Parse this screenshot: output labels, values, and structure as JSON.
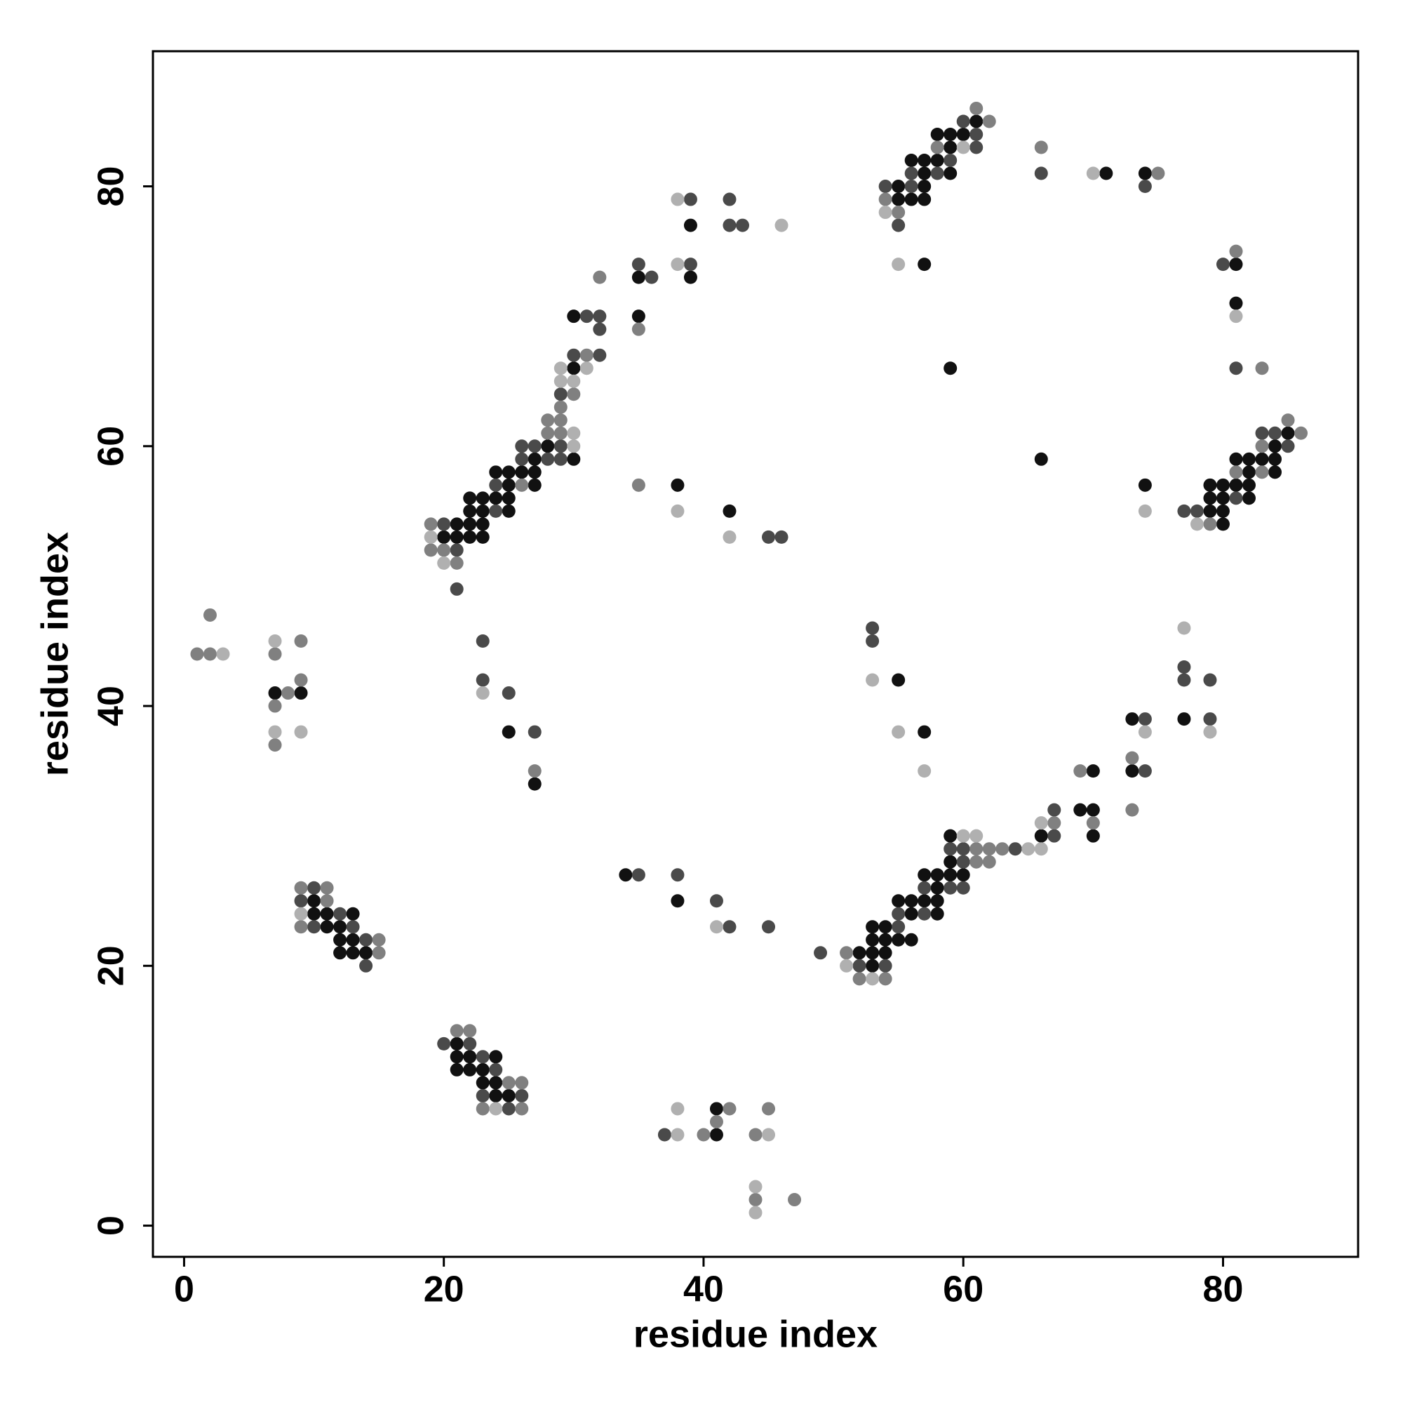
{
  "chart_data": {
    "type": "scatter",
    "xlabel": "residue index",
    "ylabel": "residue index",
    "xlim": [
      -2.4,
      90.4
    ],
    "ylim": [
      -2.4,
      90.4
    ],
    "xticks": [
      0,
      20,
      40,
      60,
      80
    ],
    "yticks": [
      0,
      20,
      40,
      60,
      80
    ],
    "series": [
      {
        "color": "#111111",
        "x": [
          7,
          9,
          10,
          10,
          11,
          13,
          11,
          12,
          12,
          13,
          12,
          13,
          14,
          21,
          21,
          22,
          24,
          21,
          22,
          23,
          23,
          24,
          24,
          25,
          34,
          38,
          41,
          41,
          53,
          54,
          53,
          54,
          55,
          56,
          52,
          53,
          54,
          53,
          55,
          56,
          57,
          58,
          56,
          58,
          58,
          57,
          58,
          59,
          60,
          59,
          60,
          59,
          66,
          70,
          69,
          70,
          70,
          73,
          73,
          77,
          25,
          27,
          55,
          57,
          21,
          22,
          23,
          20,
          21,
          22,
          23,
          22,
          23,
          25,
          22,
          23,
          24,
          25,
          25,
          27,
          24,
          25,
          26,
          27,
          27,
          30,
          28,
          30,
          30,
          35,
          35,
          39,
          39,
          38,
          42,
          55,
          57,
          55,
          56,
          57,
          57,
          59,
          56,
          57,
          58,
          59,
          58,
          59,
          60,
          61,
          57,
          59,
          71,
          74,
          81,
          81,
          66,
          74,
          79,
          80,
          80,
          79,
          80,
          82,
          79,
          80,
          81,
          82,
          82,
          84,
          81,
          82,
          83,
          84,
          84,
          85
        ],
        "y": [
          41,
          41,
          25,
          24,
          24,
          24,
          23,
          23,
          22,
          22,
          21,
          21,
          21,
          14,
          13,
          13,
          13,
          12,
          12,
          12,
          11,
          11,
          10,
          10,
          27,
          25,
          9,
          7,
          23,
          23,
          22,
          22,
          22,
          22,
          21,
          21,
          21,
          20,
          25,
          25,
          25,
          25,
          24,
          24,
          26,
          27,
          27,
          27,
          27,
          28,
          28,
          30,
          30,
          35,
          32,
          32,
          30,
          35,
          39,
          39,
          38,
          34,
          42,
          38,
          54,
          54,
          54,
          53,
          53,
          53,
          53,
          55,
          55,
          55,
          56,
          56,
          56,
          56,
          57,
          57,
          58,
          58,
          58,
          58,
          59,
          59,
          60,
          66,
          70,
          70,
          73,
          73,
          77,
          57,
          55,
          80,
          80,
          79,
          79,
          79,
          81,
          81,
          82,
          82,
          82,
          83,
          84,
          84,
          84,
          85,
          74,
          66,
          81,
          81,
          74,
          71,
          59,
          57,
          55,
          55,
          54,
          56,
          56,
          56,
          57,
          57,
          57,
          57,
          58,
          58,
          59,
          59,
          59,
          59,
          60,
          61
        ]
      },
      {
        "color": "#4a4a4a",
        "x": [
          10,
          9,
          12,
          10,
          13,
          14,
          14,
          20,
          22,
          23,
          24,
          23,
          26,
          25,
          35,
          38,
          41,
          42,
          45,
          49,
          37,
          55,
          52,
          54,
          55,
          57,
          57,
          59,
          60,
          60,
          59,
          60,
          64,
          67,
          67,
          74,
          74,
          79,
          77,
          79,
          77,
          25,
          23,
          23,
          27,
          53,
          53,
          20,
          21,
          21,
          24,
          24,
          26,
          28,
          29,
          26,
          27,
          29,
          29,
          30,
          32,
          31,
          32,
          32,
          36,
          35,
          39,
          39,
          42,
          42,
          43,
          45,
          46,
          54,
          56,
          55,
          56,
          58,
          59,
          61,
          61,
          60,
          66,
          74,
          80,
          81,
          77,
          78,
          81,
          83,
          84,
          85
        ],
        "y": [
          26,
          25,
          24,
          23,
          23,
          22,
          20,
          14,
          14,
          13,
          12,
          10,
          10,
          9,
          27,
          27,
          25,
          23,
          23,
          21,
          7,
          23,
          20,
          20,
          24,
          24,
          26,
          26,
          26,
          28,
          29,
          29,
          29,
          30,
          32,
          35,
          39,
          39,
          42,
          42,
          43,
          41,
          45,
          42,
          38,
          46,
          45,
          54,
          52,
          49,
          55,
          57,
          59,
          59,
          59,
          60,
          60,
          60,
          64,
          67,
          67,
          70,
          70,
          69,
          73,
          74,
          74,
          79,
          79,
          77,
          77,
          53,
          53,
          80,
          80,
          77,
          81,
          81,
          82,
          83,
          84,
          85,
          81,
          80,
          74,
          66,
          55,
          55,
          56,
          61,
          61,
          60
        ]
      },
      {
        "color": "#808080",
        "x": [
          1,
          2,
          2,
          7,
          9,
          8,
          9,
          7,
          7,
          9,
          11,
          11,
          9,
          15,
          15,
          21,
          22,
          25,
          26,
          23,
          26,
          42,
          45,
          41,
          40,
          44,
          44,
          47,
          51,
          52,
          54,
          61,
          62,
          61,
          62,
          63,
          67,
          69,
          70,
          73,
          73,
          27,
          19,
          19,
          20,
          21,
          26,
          28,
          29,
          28,
          29,
          29,
          30,
          31,
          32,
          35,
          35,
          54,
          55,
          58,
          62,
          61,
          66,
          75,
          81,
          83,
          79,
          81,
          83,
          83,
          86,
          85
        ],
        "y": [
          44,
          44,
          47,
          44,
          45,
          41,
          42,
          40,
          37,
          26,
          26,
          25,
          23,
          22,
          21,
          15,
          15,
          11,
          11,
          9,
          9,
          9,
          9,
          8,
          7,
          7,
          2,
          2,
          21,
          19,
          19,
          28,
          28,
          29,
          29,
          29,
          31,
          35,
          31,
          32,
          36,
          35,
          54,
          52,
          52,
          51,
          57,
          61,
          61,
          62,
          62,
          63,
          64,
          67,
          73,
          69,
          57,
          79,
          78,
          83,
          85,
          86,
          83,
          81,
          75,
          66,
          54,
          58,
          58,
          60,
          61,
          62
        ]
      },
      {
        "color": "#b0b0b0",
        "x": [
          3,
          7,
          7,
          9,
          9,
          24,
          38,
          38,
          45,
          44,
          44,
          41,
          51,
          53,
          60,
          61,
          65,
          66,
          66,
          74,
          79,
          77,
          23,
          53,
          55,
          57,
          19,
          20,
          30,
          30,
          29,
          30,
          29,
          31,
          38,
          38,
          46,
          38,
          42,
          54,
          55,
          60,
          70,
          81,
          74,
          78
        ],
        "y": [
          44,
          45,
          38,
          38,
          24,
          9,
          9,
          7,
          7,
          3,
          1,
          23,
          20,
          19,
          30,
          30,
          29,
          29,
          31,
          38,
          38,
          46,
          41,
          42,
          38,
          35,
          53,
          51,
          61,
          60,
          65,
          65,
          66,
          66,
          74,
          79,
          77,
          55,
          53,
          78,
          74,
          83,
          81,
          70,
          55,
          54
        ]
      }
    ]
  }
}
